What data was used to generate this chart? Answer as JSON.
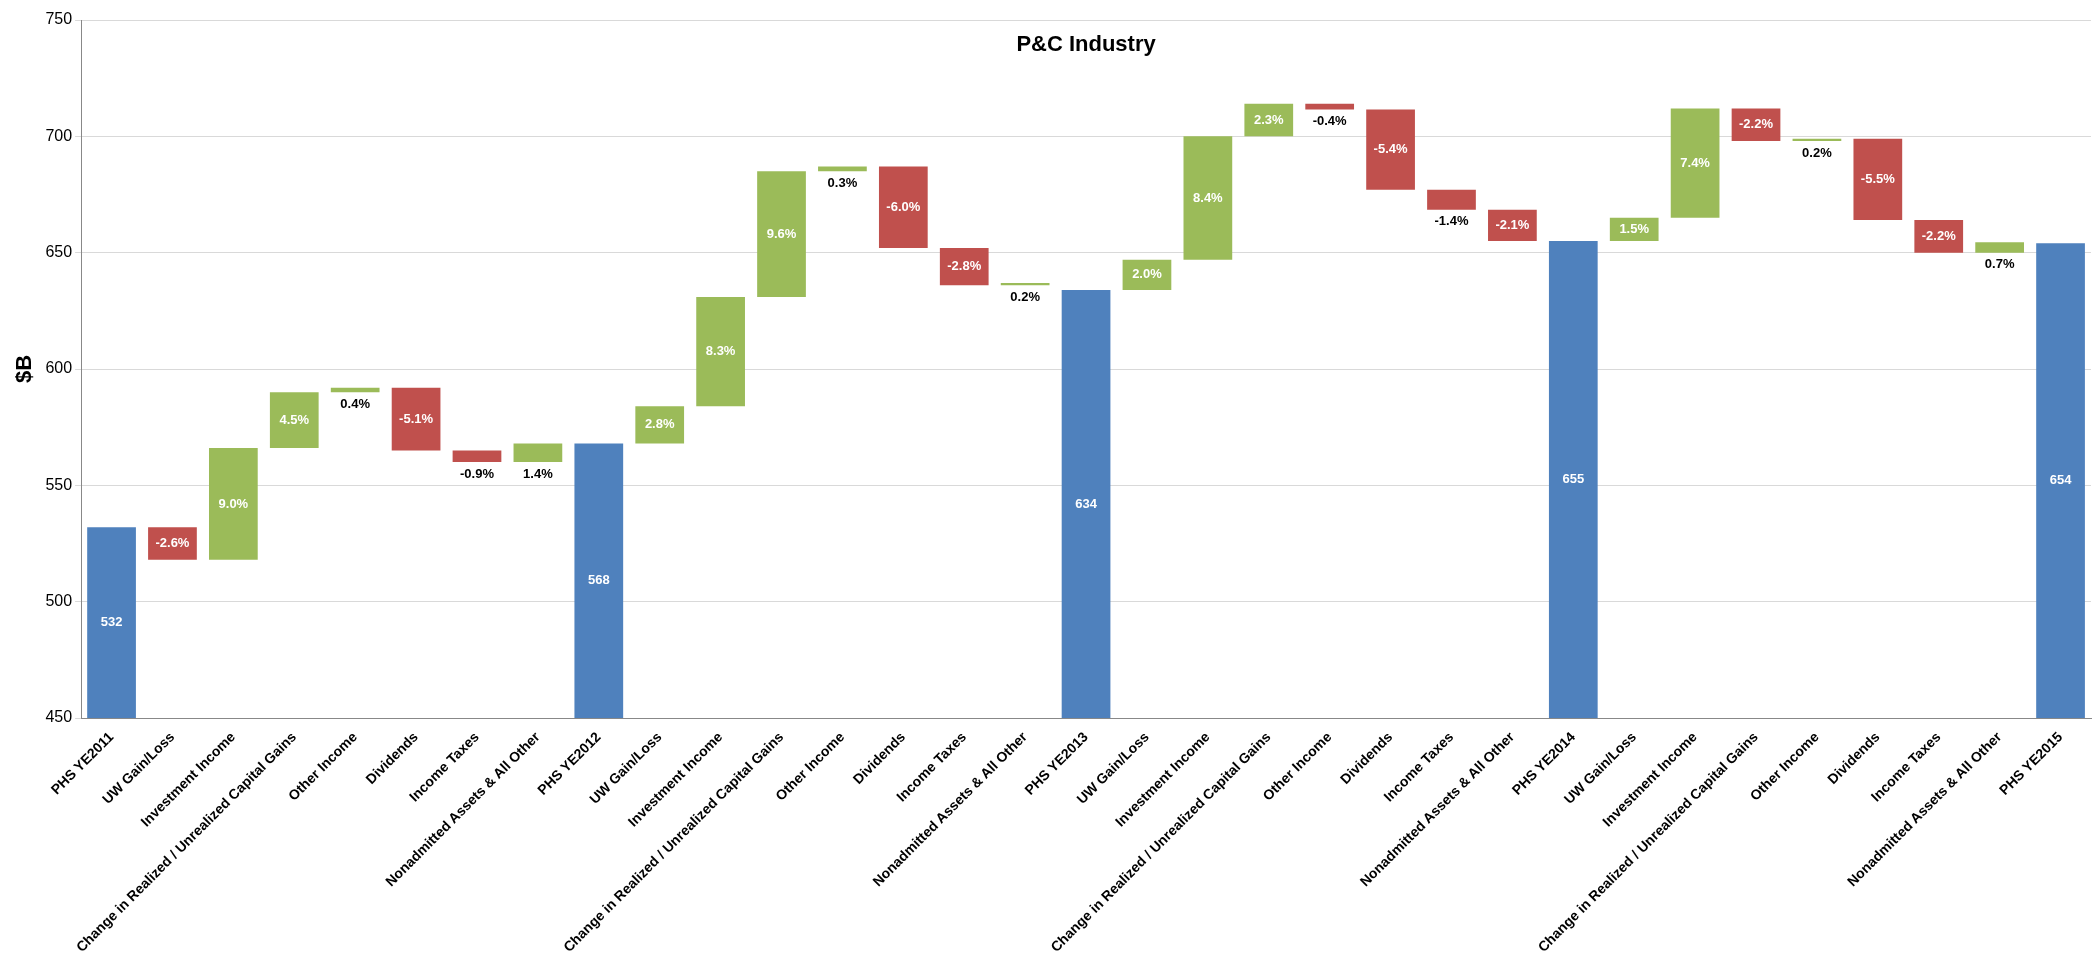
{
  "chart_data": {
    "type": "bar",
    "title": "P&C Industry",
    "ylabel": "$B",
    "categories": [
      "PHS YE2011",
      "UW Gain/Loss",
      "Investment Income",
      "Change in Realized / Unrealized Capital Gains",
      "Other Income",
      "Dividends",
      "Income Taxes",
      "Nonadmitted Assets & All Other",
      "PHS YE2012",
      "UW Gain/Loss",
      "Investment Income",
      "Change in Realized / Unrealized Capital Gains",
      "Other Income",
      "Dividends",
      "Income Taxes",
      "Nonadmitted Assets & All Other",
      "PHS YE2013",
      "UW Gain/Loss",
      "Investment Income",
      "Change in Realized / Unrealized Capital Gains",
      "Other Income",
      "Dividends",
      "Income Taxes",
      "Nonadmitted Assets & All Other",
      "PHS YE2014",
      "UW Gain/Loss",
      "Investment Income",
      "Change in Realized / Unrealized Capital Gains",
      "Other Income",
      "Dividends",
      "Income Taxes",
      "Nonadmitted Assets & All Other",
      "PHS YE2015"
    ],
    "values": [
      532,
      -14,
      48,
      24,
      2,
      -27,
      -5,
      8,
      568,
      16,
      47,
      54,
      2,
      -35,
      -16,
      1,
      634,
      13,
      53,
      14,
      -2.5,
      -34.5,
      -8.5,
      -13.5,
      655,
      10,
      47,
      -14,
      1,
      -35,
      -14,
      4.5,
      654
    ],
    "base": [
      null,
      532,
      518,
      566,
      590,
      592,
      565,
      560,
      null,
      568,
      584,
      631,
      685,
      687,
      652,
      636,
      null,
      634,
      647,
      700,
      714,
      711.5,
      677,
      668.5,
      null,
      655,
      665,
      712,
      698,
      699,
      664,
      650,
      null
    ],
    "colors": [
      "#4f81bd",
      "#c0504d",
      "#9bbb59",
      "#9bbb59",
      "#9bbb59",
      "#c0504d",
      "#c0504d",
      "#9bbb59",
      "#4f81bd",
      "#9bbb59",
      "#9bbb59",
      "#9bbb59",
      "#9bbb59",
      "#c0504d",
      "#c0504d",
      "#9bbb59",
      "#4f81bd",
      "#9bbb59",
      "#9bbb59",
      "#9bbb59",
      "#c0504d",
      "#c0504d",
      "#c0504d",
      "#c0504d",
      "#4f81bd",
      "#9bbb59",
      "#9bbb59",
      "#c0504d",
      "#9bbb59",
      "#c0504d",
      "#c0504d",
      "#9bbb59",
      "#4f81bd"
    ],
    "value_labels": [
      "532",
      null,
      null,
      null,
      null,
      null,
      null,
      null,
      "568",
      null,
      null,
      null,
      null,
      null,
      null,
      null,
      "634",
      null,
      null,
      null,
      null,
      null,
      null,
      null,
      "655",
      null,
      null,
      null,
      null,
      null,
      null,
      null,
      "654"
    ],
    "annotations": [
      "-2.6%",
      "9.0%",
      "4.5%",
      "0.4%",
      "-5.1%",
      "-0.9%",
      "1.4%",
      "2.8%",
      "8.3%",
      "9.6%",
      "0.3%",
      "-6.0%",
      "-2.8%",
      "0.2%",
      "2.0%",
      "8.4%",
      "2.3%",
      "-0.4%",
      "-5.4%",
      "-1.4%",
      "-2.1%",
      "1.5%",
      "7.4%",
      "-2.2%",
      "0.2%",
      "-5.5%",
      "-2.2%",
      "0.7%"
    ],
    "ylim": [
      450,
      750
    ],
    "yticks": [
      450,
      500,
      550,
      600,
      650,
      700,
      750
    ],
    "grid": "y"
  }
}
